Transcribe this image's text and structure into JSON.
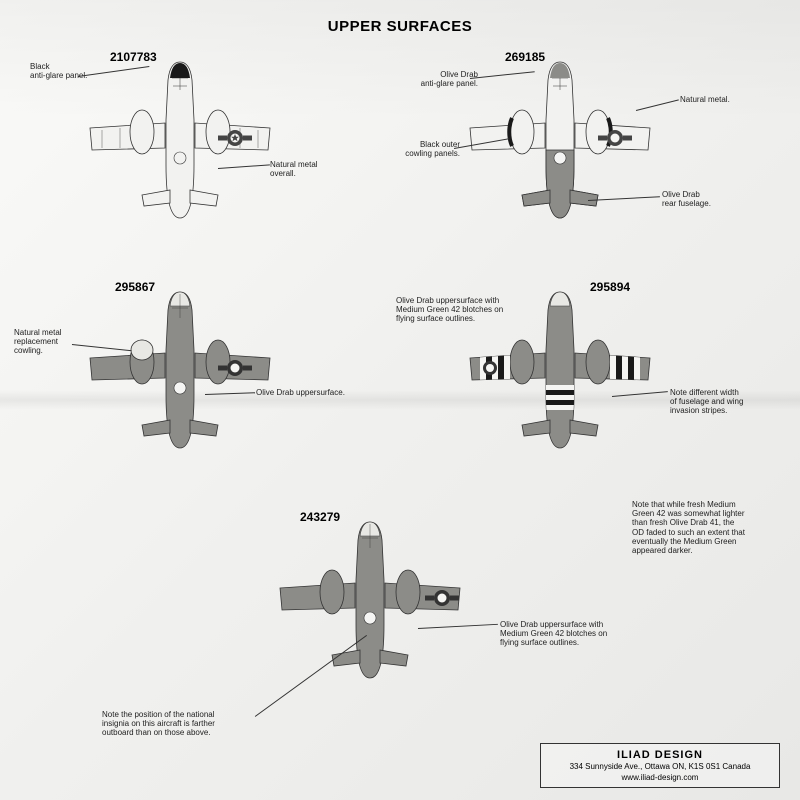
{
  "title": "UPPER SURFACES",
  "bg_page": "#f5f5f3",
  "aircraft": {
    "p1": {
      "serial": "2107783",
      "fill_fuselage": "#f2f2f0",
      "fill_wings": "#f2f2f0",
      "antiglare": "#1a1a1a",
      "cowl": "#f2f2f0",
      "stroke": "#333333"
    },
    "p2": {
      "serial": "269185",
      "fill_fuselage_front": "#f2f2f0",
      "fill_fuselage_rear": "#8c8c88",
      "fill_wings": "#f2f2f0",
      "antiglare": "#8c8c88",
      "cowl_outer": "#1a1a1a",
      "stroke": "#333333"
    },
    "p3": {
      "serial": "295867",
      "fill": "#8c8c88",
      "cowl": "#e8e8e4",
      "stroke": "#333333"
    },
    "p4": {
      "serial": "295894",
      "fill": "#8c8c88",
      "stripe_black": "#1a1a1a",
      "stripe_white": "#f5f5f3",
      "stroke": "#333333"
    },
    "p5": {
      "serial": "243279",
      "fill": "#8c8c88",
      "stroke": "#333333"
    }
  },
  "labels": {
    "l1a": "Black\nanti-glare panel.",
    "l1b": "Natural metal\noverall.",
    "l2a": "Olive Drab\nanti-glare panel.",
    "l2b": "Natural metal.",
    "l2c": "Black outer\ncowling panels.",
    "l2d": "Olive Drab\nrear fuselage.",
    "l3a": "Natural metal\nreplacement\ncowling.",
    "l3b": "Olive Drab uppersurface.",
    "l4a": "Olive Drab uppersurface with\nMedium Green 42 blotches on\nflying surface outlines.",
    "l4b": "Note different width\nof fuselage and wing\ninvasion stripes.",
    "l5a": "Olive Drab uppersurface with\nMedium Green 42 blotches on\nflying surface outlines.",
    "l5b": "Note the position of the national\ninsignia on this aircraft is farther\noutboard than on those above.",
    "note_mg": "Note that while fresh Medium\nGreen 42 was somewhat lighter\nthan fresh Olive Drab 41, the\nOD faded to such an extent that\neventually the Medium Green\nappeared darker."
  },
  "publisher": {
    "brand": "ILIAD DESIGN",
    "addr": "334 Sunnyside Ave., Ottawa ON, K1S 0S1 Canada",
    "url": "www.iliad-design.com"
  }
}
